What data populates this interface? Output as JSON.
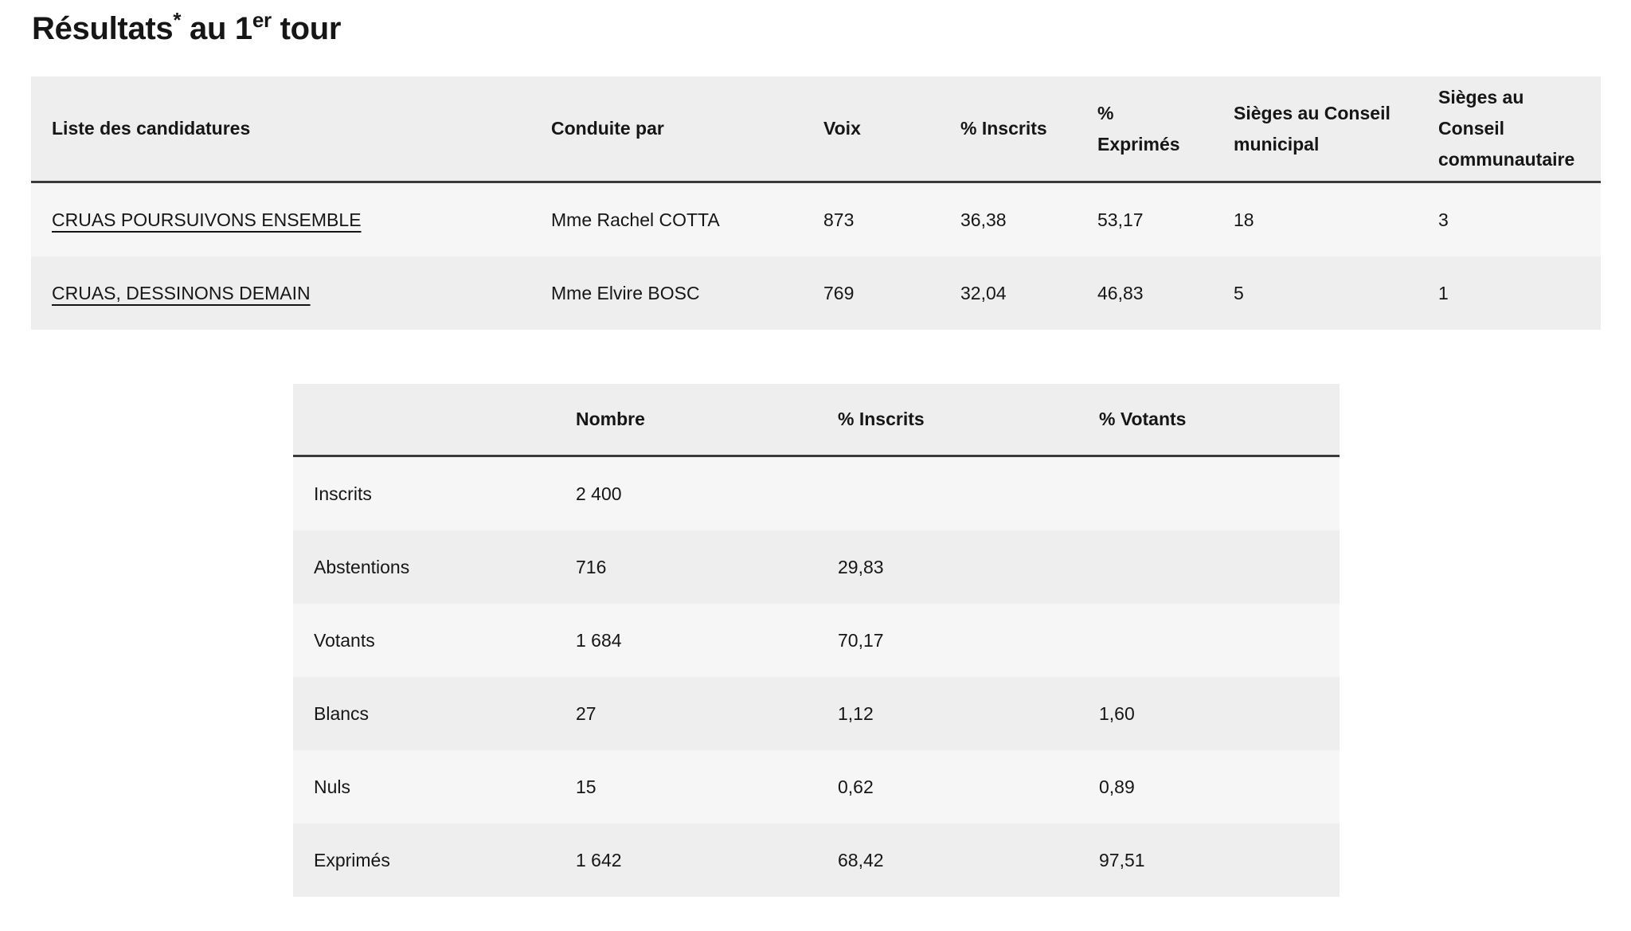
{
  "title": {
    "main": "Résultats",
    "star": "*",
    "mid": " au 1",
    "sup": "er",
    "end": " tour"
  },
  "candidates": {
    "headers": [
      "Liste des candidatures",
      "Conduite par",
      "Voix",
      "% Inscrits",
      "% Exprimés",
      "Sièges au Conseil municipal",
      "Sièges au Conseil communautaire"
    ],
    "rows": [
      [
        "CRUAS POURSUIVONS ENSEMBLE",
        "Mme Rachel COTTA",
        "873",
        "36,38",
        "53,17",
        "18",
        "3"
      ],
      [
        "CRUAS, DESSINONS DEMAIN",
        "Mme Elvire BOSC",
        "769",
        "32,04",
        "46,83",
        "5",
        "1"
      ]
    ]
  },
  "summary": {
    "headers": [
      "",
      "Nombre",
      "% Inscrits",
      "% Votants"
    ],
    "rows": [
      [
        "Inscrits",
        "2 400",
        "",
        ""
      ],
      [
        "Abstentions",
        "716",
        "29,83",
        ""
      ],
      [
        "Votants",
        "1 684",
        "70,17",
        ""
      ],
      [
        "Blancs",
        "27",
        "1,12",
        "1,60"
      ],
      [
        "Nuls",
        "15",
        "0,62",
        "0,89"
      ],
      [
        "Exprimés",
        "1 642",
        "68,42",
        "97,51"
      ]
    ]
  }
}
